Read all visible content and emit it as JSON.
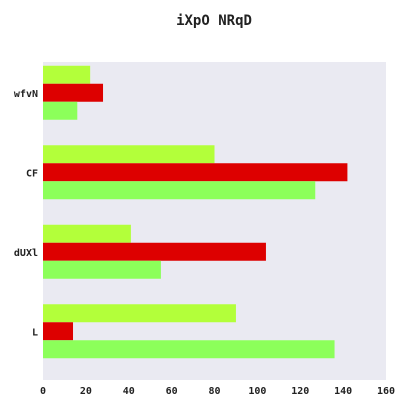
{
  "chart_data": {
    "type": "bar",
    "orientation": "horizontal",
    "title": "iXpO NRqD",
    "xlabel": "",
    "ylabel": "",
    "categories": [
      "wfvN",
      "CF",
      "dUXl",
      "L"
    ],
    "series": [
      {
        "color": "#b3ff3a",
        "values": [
          22,
          80,
          41,
          90
        ]
      },
      {
        "color": "#dd0000",
        "values": [
          28,
          142,
          104,
          14
        ]
      },
      {
        "color": "#8cff5a",
        "values": [
          16,
          127,
          55,
          136
        ]
      }
    ],
    "xlim": [
      0,
      160
    ],
    "xticks": [
      "0",
      "20",
      "40",
      "60",
      "80",
      "100",
      "120",
      "140",
      "160"
    ],
    "grid": false,
    "legend": "none",
    "background_color": "#eaeaf2"
  }
}
